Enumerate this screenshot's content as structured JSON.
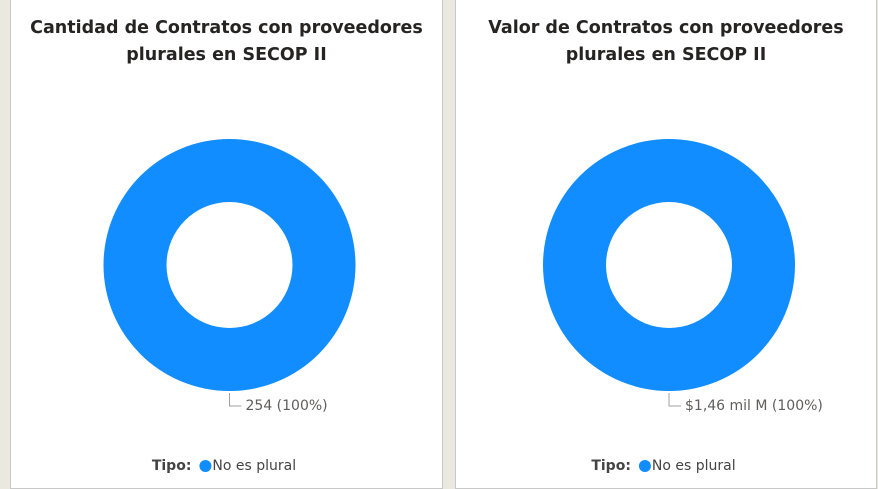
{
  "chart_data": [
    {
      "type": "pie",
      "donut": true,
      "title": "Cantidad de Contratos con proveedores plurales en SECOP II",
      "categories": [
        "No es plural"
      ],
      "values": [
        254
      ],
      "value_labels": [
        "254 (100%)"
      ],
      "colors": [
        "#118dff"
      ],
      "legend_title": "Tipo:"
    },
    {
      "type": "pie",
      "donut": true,
      "title": "Valor de Contratos con proveedores plurales en SECOP II",
      "categories": [
        "No es plural"
      ],
      "values": [
        1460000000
      ],
      "value_labels": [
        "$1,46 mil M (100%)"
      ],
      "colors": [
        "#118dff"
      ],
      "legend_title": "Tipo:"
    }
  ]
}
